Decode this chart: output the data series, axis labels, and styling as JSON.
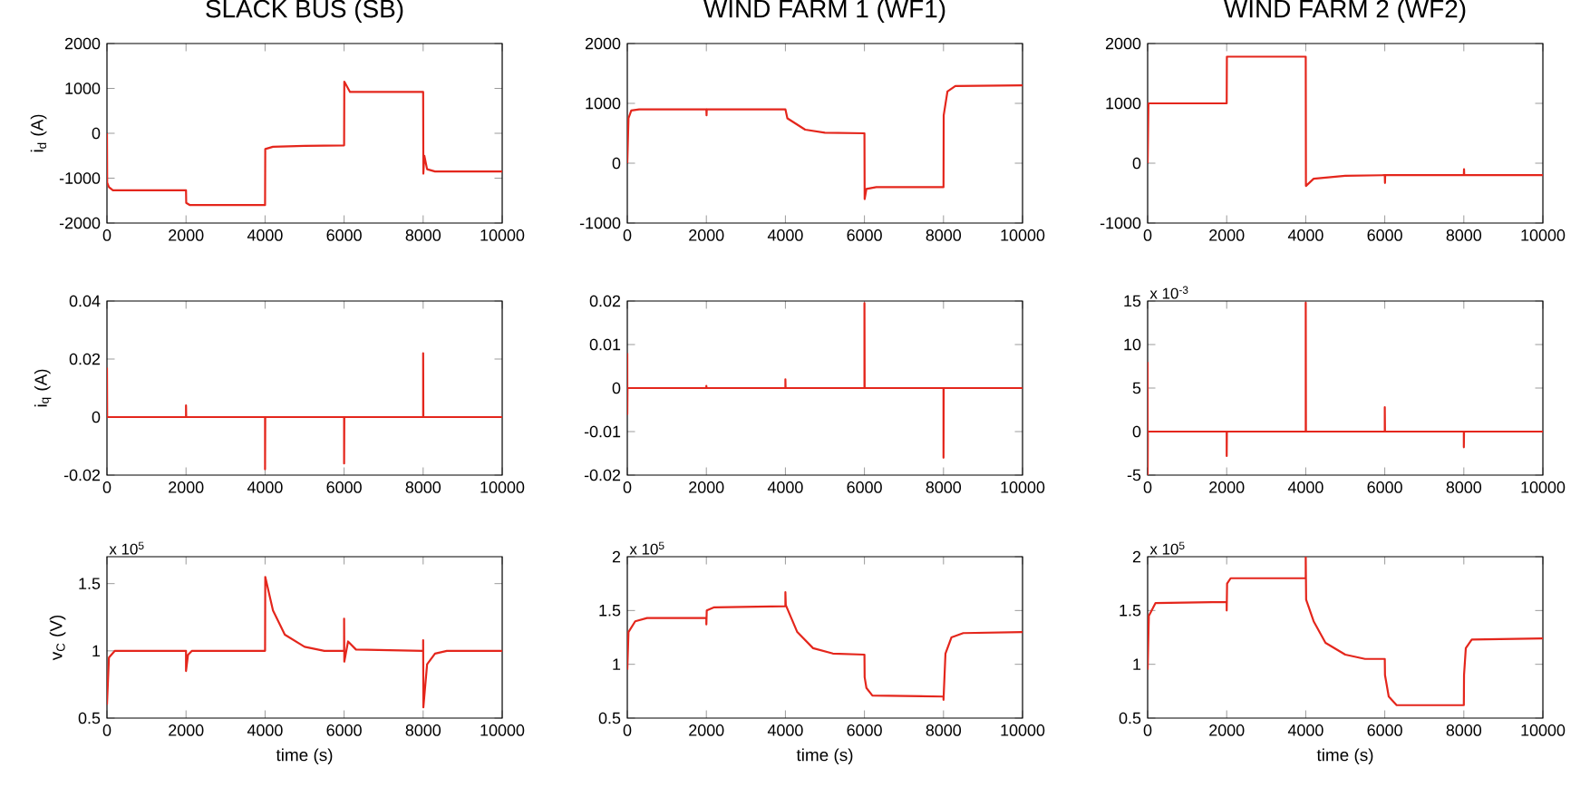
{
  "chart_data": [
    {
      "type": "line",
      "title": "SLACK BUS (SB)",
      "ylabel": "i$_{d}$ (A)",
      "x": [
        0,
        5,
        50,
        150,
        2000,
        2005,
        2100,
        4000,
        4005,
        4200,
        5000,
        6000,
        6005,
        6150,
        8000,
        8005,
        8030,
        8100,
        8300,
        10000
      ],
      "series": [
        {
          "color": "#e4261c",
          "values": [
            0,
            -1100,
            -1200,
            -1270,
            -1270,
            -1550,
            -1600,
            -1600,
            -350,
            -300,
            -280,
            -270,
            1150,
            920,
            920,
            -900,
            -500,
            -800,
            -850,
            -850
          ]
        }
      ],
      "xlim": [
        0,
        10000
      ],
      "ylim": [
        -2000,
        2000
      ],
      "xticks": [
        0,
        2000,
        4000,
        6000,
        8000,
        10000
      ],
      "yticks": [
        -2000,
        -1000,
        0,
        1000,
        2000
      ]
    },
    {
      "type": "line",
      "title": "WIND FARM 1 (WF1)",
      "x": [
        0,
        30,
        100,
        300,
        2000,
        2005,
        2010,
        4000,
        4050,
        4500,
        5000,
        6000,
        6005,
        6050,
        6300,
        8000,
        8005,
        8100,
        8300,
        10000
      ],
      "series": [
        {
          "color": "#e4261c",
          "values": [
            0,
            750,
            880,
            900,
            900,
            800,
            900,
            900,
            750,
            560,
            510,
            500,
            -600,
            -430,
            -400,
            -400,
            800,
            1200,
            1290,
            1300
          ]
        }
      ],
      "xlim": [
        0,
        10000
      ],
      "ylim": [
        -1000,
        2000
      ],
      "xticks": [
        0,
        2000,
        4000,
        6000,
        8000,
        10000
      ],
      "yticks": [
        -1000,
        0,
        1000,
        2000
      ]
    },
    {
      "type": "line",
      "title": "WIND FARM 2 (WF2)",
      "x": [
        0,
        20,
        2000,
        2005,
        4000,
        4005,
        4200,
        5000,
        6000,
        6005,
        6010,
        8000,
        8005,
        8010,
        10000
      ],
      "series": [
        {
          "color": "#e4261c",
          "values": [
            0,
            1000,
            1000,
            1780,
            1780,
            -380,
            -260,
            -210,
            -200,
            -330,
            -200,
            -200,
            -100,
            -200,
            -200
          ]
        }
      ],
      "xlim": [
        0,
        10000
      ],
      "ylim": [
        -1000,
        2000
      ],
      "xticks": [
        0,
        2000,
        4000,
        6000,
        8000,
        10000
      ],
      "yticks": [
        -1000,
        0,
        1000,
        2000
      ]
    },
    {
      "type": "line",
      "ylabel": "i$_{q}$ (A)",
      "x": [
        0,
        5,
        2000,
        2000,
        2005,
        4000,
        4000,
        4005,
        6000,
        6000,
        6005,
        8000,
        8000,
        8005,
        10000
      ],
      "series": [
        {
          "color": "#e4261c",
          "values": [
            0.017,
            0,
            0,
            0.004,
            0,
            0,
            -0.018,
            0,
            0,
            -0.016,
            0,
            0,
            0.022,
            0,
            0
          ]
        }
      ],
      "xlim": [
        0,
        10000
      ],
      "ylim": [
        -0.02,
        0.04
      ],
      "xticks": [
        0,
        2000,
        4000,
        6000,
        8000,
        10000
      ],
      "yticks": [
        -0.02,
        0,
        0.02,
        0.04
      ]
    },
    {
      "type": "line",
      "x": [
        0,
        0,
        5,
        2000,
        2000,
        2005,
        4000,
        4000,
        4005,
        6000,
        6000,
        6005,
        8000,
        8000,
        8005,
        10000
      ],
      "series": [
        {
          "color": "#e4261c",
          "values": [
            0.008,
            -0.006,
            0,
            0,
            0.0005,
            0,
            0,
            0.002,
            0,
            0,
            0.0195,
            0,
            0,
            -0.016,
            0,
            0
          ]
        }
      ],
      "xlim": [
        0,
        10000
      ],
      "ylim": [
        -0.02,
        0.02
      ],
      "xticks": [
        0,
        2000,
        4000,
        6000,
        8000,
        10000
      ],
      "yticks": [
        -0.02,
        -0.01,
        0,
        0.01,
        0.02
      ]
    },
    {
      "type": "line",
      "annotations": [
        "x 10$^{-3}$"
      ],
      "x": [
        0,
        0,
        5,
        2000,
        2000,
        2005,
        4000,
        4000,
        4005,
        6000,
        6000,
        6005,
        8000,
        8000,
        8005,
        10000
      ],
      "series": [
        {
          "color": "#e4261c",
          "values": [
            8,
            -5,
            0,
            0,
            -2.8,
            0,
            0,
            14.8,
            0,
            0,
            2.8,
            0,
            0,
            -1.8,
            0,
            0
          ]
        }
      ],
      "xlim": [
        0,
        10000
      ],
      "ylim": [
        -5,
        15
      ],
      "xticks": [
        0,
        2000,
        4000,
        6000,
        8000,
        10000
      ],
      "yticks": [
        -5,
        0,
        5,
        10,
        15
      ]
    },
    {
      "type": "line",
      "ylabel": "v$_{C}$ (V)",
      "xlabel": "time (s)",
      "annotations": [
        "x 10$^{5}$"
      ],
      "x": [
        0,
        50,
        200,
        2000,
        2000,
        2050,
        2150,
        4000,
        4005,
        4200,
        4500,
        5000,
        5500,
        6000,
        6000,
        6005,
        6100,
        6300,
        8000,
        8000,
        8005,
        8100,
        8300,
        8600,
        10000
      ],
      "series": [
        {
          "color": "#e4261c",
          "values": [
            0.6,
            0.95,
            1.0,
            1.0,
            0.85,
            0.97,
            1.0,
            1.0,
            1.55,
            1.3,
            1.12,
            1.03,
            1.0,
            1.0,
            1.24,
            0.92,
            1.07,
            1.01,
            1.0,
            1.08,
            0.58,
            0.9,
            0.98,
            1.0,
            1.0
          ]
        }
      ],
      "xlim": [
        0,
        10000
      ],
      "ylim": [
        0.5,
        1.7
      ],
      "xticks": [
        0,
        2000,
        4000,
        6000,
        8000,
        10000
      ],
      "yticks": [
        0.5,
        1,
        1.5
      ]
    },
    {
      "type": "line",
      "xlabel": "time (s)",
      "annotations": [
        "x 10$^{5}$"
      ],
      "x": [
        0,
        30,
        200,
        500,
        2000,
        2000,
        2010,
        2200,
        4000,
        4000,
        4010,
        4300,
        4700,
        5200,
        6000,
        6005,
        6050,
        6200,
        8000,
        8000,
        8050,
        8200,
        8500,
        10000
      ],
      "series": [
        {
          "color": "#e4261c",
          "values": [
            0.95,
            1.3,
            1.4,
            1.43,
            1.43,
            1.37,
            1.5,
            1.53,
            1.54,
            1.67,
            1.55,
            1.3,
            1.15,
            1.1,
            1.09,
            0.88,
            0.78,
            0.71,
            0.7,
            0.67,
            1.1,
            1.25,
            1.29,
            1.3
          ]
        }
      ],
      "xlim": [
        0,
        10000
      ],
      "ylim": [
        0.5,
        2
      ],
      "xticks": [
        0,
        2000,
        4000,
        6000,
        8000,
        10000
      ],
      "yticks": [
        0.5,
        1,
        1.5,
        2
      ]
    },
    {
      "type": "line",
      "xlabel": "time (s)",
      "annotations": [
        "x 10$^{5}$"
      ],
      "x": [
        0,
        30,
        200,
        2000,
        2000,
        2010,
        2100,
        4000,
        4000,
        4010,
        4200,
        4500,
        5000,
        5500,
        6000,
        6005,
        6100,
        6300,
        8000,
        8005,
        8050,
        8200,
        10000
      ],
      "series": [
        {
          "color": "#e4261c",
          "values": [
            0.95,
            1.45,
            1.57,
            1.58,
            1.5,
            1.75,
            1.8,
            1.8,
            2.0,
            1.6,
            1.4,
            1.2,
            1.09,
            1.05,
            1.05,
            0.9,
            0.7,
            0.62,
            0.62,
            0.9,
            1.15,
            1.23,
            1.24
          ]
        }
      ],
      "xlim": [
        0,
        10000
      ],
      "ylim": [
        0.5,
        2
      ],
      "xticks": [
        0,
        2000,
        4000,
        6000,
        8000,
        10000
      ],
      "yticks": [
        0.5,
        1,
        1.5,
        2
      ]
    }
  ]
}
